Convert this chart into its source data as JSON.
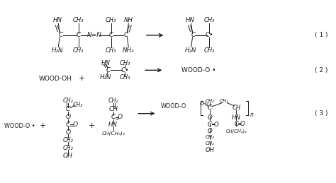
{
  "background_color": "#ffffff",
  "text_color": "#1a1a1a",
  "figsize": [
    4.74,
    2.59
  ],
  "dpi": 100,
  "label1": "( 1 )",
  "label2": "( 2 )",
  "label3": "( 3 )"
}
